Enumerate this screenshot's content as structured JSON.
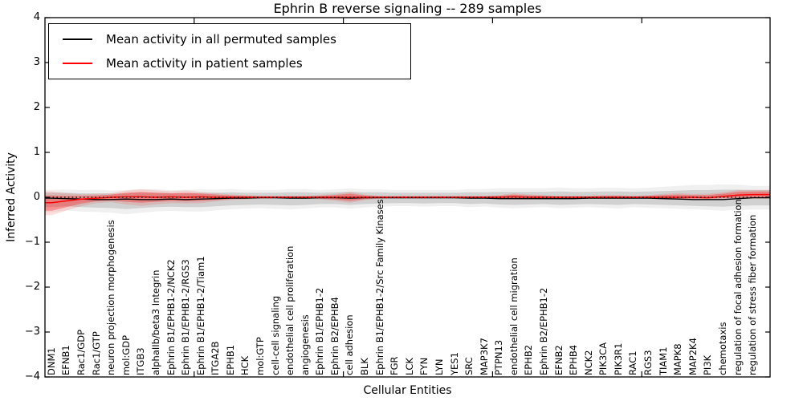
{
  "legend": {
    "items": [
      {
        "label": "Mean activity in all permuted samples",
        "color": "#000000"
      },
      {
        "label": "Mean activity in patient samples",
        "color": "#ff0000"
      }
    ]
  },
  "chart_data": {
    "type": "line",
    "title": "Ephrin B reverse signaling -- 289 samples",
    "xlabel": "Cellular Entities",
    "ylabel": "Inferred Activity",
    "ylim": [
      -4,
      4
    ],
    "ytick_values": [
      4,
      3,
      2,
      1,
      0,
      -1,
      -2,
      -3,
      -4
    ],
    "ytick_labels": [
      "4",
      "3",
      "2",
      "1",
      "0",
      "−1",
      "−2",
      "−3",
      "−4"
    ],
    "xticks_major": [
      10,
      20,
      30,
      40
    ],
    "grid": false,
    "legend_position": "upper left",
    "categories": [
      "DNM1",
      "EFNB1",
      "Rac1/GDP",
      "Rac1/GTP",
      "neuron projection morphogenesis",
      "mol:GDP",
      "ITGB3",
      "alphaIIb/beta3 Integrin",
      "Ephrin B1/EPHB1-2/NCK2",
      "Ephrin B1/EPHB1-2/RGS3",
      "Ephrin B1/EPHB1-2/Tiam1",
      "ITGA2B",
      "EPHB1",
      "HCK",
      "mol:GTP",
      "cell-cell signaling",
      "endothelial cell proliferation",
      "angiogenesis",
      "Ephrin B1/EPHB1-2",
      "Ephrin B2/EPHB4",
      "cell adhesion",
      "BLK",
      "Ephrin B1/EPHB1-2/Src Family Kinases",
      "FGR",
      "LCK",
      "FYN",
      "LYN",
      "YES1",
      "SRC",
      "MAP3K7",
      "PTPN13",
      "endothelial cell migration",
      "EPHB2",
      "Ephrin B2/EPHB1-2",
      "EFNB2",
      "EPHB4",
      "NCK2",
      "PIK3CA",
      "PIK3R1",
      "RAC1",
      "RGS3",
      "TIAM1",
      "MAPK8",
      "MAP2K4",
      "PI3K",
      "chemotaxis",
      "regulation of focal adhesion formation",
      "regulation of stress fiber formation"
    ],
    "series": [
      {
        "name": "Mean activity in all permuted samples",
        "color": "#000000",
        "line_style": "solid",
        "band_fill": "rgba(0,0,0,0.13)",
        "band_halo_fill": "rgba(0,0,0,0.06)",
        "values": [
          -0.02,
          -0.03,
          -0.04,
          -0.05,
          -0.05,
          -0.04,
          -0.05,
          -0.05,
          -0.04,
          -0.05,
          -0.04,
          -0.03,
          -0.02,
          -0.02,
          -0.01,
          -0.01,
          -0.02,
          -0.02,
          -0.01,
          -0.01,
          -0.02,
          -0.01,
          -0.01,
          -0.01,
          -0.01,
          -0.01,
          -0.01,
          -0.01,
          -0.02,
          -0.02,
          -0.03,
          -0.03,
          -0.03,
          -0.03,
          -0.03,
          -0.03,
          -0.02,
          -0.02,
          -0.02,
          -0.02,
          -0.02,
          -0.03,
          -0.04,
          -0.05,
          -0.05,
          -0.05,
          -0.03,
          -0.01
        ],
        "band_upper": [
          0.1,
          0.1,
          0.09,
          0.09,
          0.08,
          0.09,
          0.1,
          0.1,
          0.09,
          0.09,
          0.1,
          0.1,
          0.11,
          0.1,
          0.1,
          0.1,
          0.11,
          0.11,
          0.1,
          0.11,
          0.12,
          0.11,
          0.11,
          0.1,
          0.1,
          0.1,
          0.1,
          0.1,
          0.11,
          0.11,
          0.12,
          0.12,
          0.12,
          0.12,
          0.13,
          0.12,
          0.12,
          0.13,
          0.13,
          0.12,
          0.13,
          0.14,
          0.15,
          0.16,
          0.16,
          0.17,
          0.17,
          0.16
        ],
        "band_lower": [
          -0.22,
          -0.2,
          -0.22,
          -0.23,
          -0.24,
          -0.26,
          -0.24,
          -0.22,
          -0.21,
          -0.22,
          -0.22,
          -0.2,
          -0.18,
          -0.17,
          -0.16,
          -0.17,
          -0.18,
          -0.17,
          -0.15,
          -0.15,
          -0.17,
          -0.15,
          -0.14,
          -0.13,
          -0.13,
          -0.14,
          -0.13,
          -0.13,
          -0.15,
          -0.14,
          -0.16,
          -0.17,
          -0.16,
          -0.15,
          -0.17,
          -0.16,
          -0.15,
          -0.16,
          -0.17,
          -0.15,
          -0.16,
          -0.17,
          -0.18,
          -0.19,
          -0.2,
          -0.21,
          -0.19,
          -0.18
        ]
      },
      {
        "name": "Mean activity in patient samples",
        "color": "#ff0000",
        "line_style": "solid",
        "band_fill": "rgba(255,0,0,0.30)",
        "band_halo_fill": "rgba(255,0,0,0.13)",
        "values": [
          -0.12,
          -0.08,
          -0.04,
          -0.02,
          0.0,
          0.01,
          0.01,
          0.0,
          0.01,
          0.0,
          0.01,
          0.0,
          0.0,
          0.0,
          0.0,
          0.0,
          0.0,
          0.0,
          0.0,
          0.0,
          0.0,
          0.0,
          0.0,
          0.0,
          0.0,
          0.0,
          0.0,
          0.0,
          0.0,
          0.0,
          0.0,
          0.01,
          0.0,
          0.0,
          0.0,
          0.0,
          0.0,
          0.0,
          0.0,
          0.0,
          0.0,
          0.0,
          0.0,
          0.0,
          -0.01,
          0.02,
          0.05,
          0.06
        ],
        "band_upper": [
          0.04,
          0.03,
          0.03,
          0.04,
          0.06,
          0.1,
          0.12,
          0.1,
          0.09,
          0.1,
          0.08,
          0.06,
          0.04,
          0.03,
          0.02,
          0.02,
          0.02,
          0.02,
          0.03,
          0.05,
          0.08,
          0.04,
          0.02,
          0.02,
          0.02,
          0.02,
          0.02,
          0.02,
          0.02,
          0.02,
          0.03,
          0.06,
          0.04,
          0.03,
          0.02,
          0.02,
          0.02,
          0.03,
          0.03,
          0.02,
          0.03,
          0.05,
          0.06,
          0.05,
          0.05,
          0.08,
          0.12,
          0.13
        ],
        "band_lower": [
          -0.3,
          -0.22,
          -0.14,
          -0.09,
          -0.07,
          -0.1,
          -0.12,
          -0.1,
          -0.08,
          -0.09,
          -0.08,
          -0.06,
          -0.04,
          -0.03,
          -0.02,
          -0.02,
          -0.02,
          -0.02,
          -0.03,
          -0.05,
          -0.08,
          -0.04,
          -0.02,
          -0.02,
          -0.02,
          -0.02,
          -0.02,
          -0.02,
          -0.02,
          -0.02,
          -0.02,
          -0.03,
          -0.03,
          -0.02,
          -0.02,
          -0.02,
          -0.02,
          -0.02,
          -0.02,
          -0.02,
          -0.02,
          -0.03,
          -0.03,
          -0.03,
          -0.03,
          -0.02,
          -0.01,
          0.0
        ]
      }
    ],
    "zero_line": {
      "value": 0,
      "color": "#000000",
      "line_style": "dotted"
    }
  }
}
